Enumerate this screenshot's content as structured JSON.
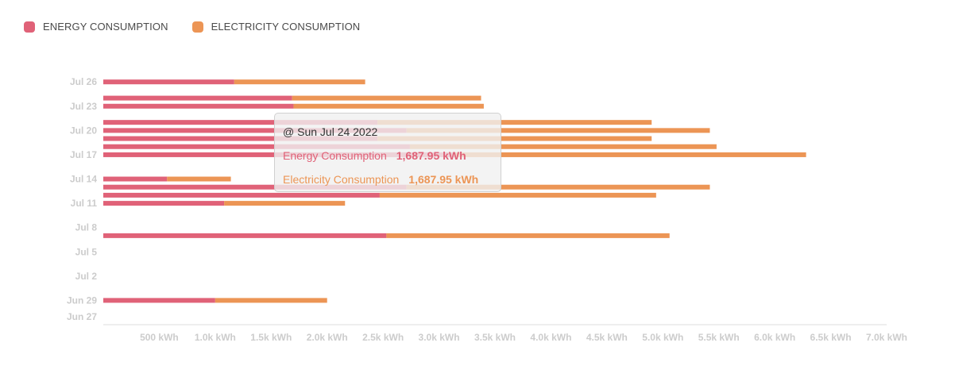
{
  "legend": {
    "energy_label": "ENERGY CONSUMPTION",
    "electricity_label": "ELECTRICITY CONSUMPTION"
  },
  "colors": {
    "energy": "#e06278",
    "electricity": "#ec9555",
    "axis": "#dddddd",
    "tick_text": "#cccccc"
  },
  "tooltip": {
    "title": "@ Sun Jul 24 2022",
    "energy_label": "Energy Consumption",
    "energy_value": "1,687.95 kWh",
    "electricity_label": "Electricity Consumption",
    "electricity_value": "1,687.95 kWh"
  },
  "chart_data": {
    "type": "bar",
    "orientation": "horizontal",
    "stacked": true,
    "xlim": [
      0,
      7000
    ],
    "x_ticks": [
      500,
      1000,
      1500,
      2000,
      2500,
      3000,
      3500,
      4000,
      4500,
      5000,
      5500,
      6000,
      6500,
      7000
    ],
    "x_tick_labels": [
      "500 kWh",
      "1.0k kWh",
      "1.5k kWh",
      "2.0k kWh",
      "2.5k kWh",
      "3.0k kWh",
      "3.5k kWh",
      "4.0k kWh",
      "4.5k kWh",
      "5.0k kWh",
      "5.5k kWh",
      "6.0k kWh",
      "6.5k kWh",
      "7.0k kWh"
    ],
    "y_tick_labels": [
      {
        "label": "Jun 27",
        "date": "2022-06-27"
      },
      {
        "label": "Jun 29",
        "date": "2022-06-29"
      },
      {
        "label": "Jul 2",
        "date": "2022-07-02"
      },
      {
        "label": "Jul 5",
        "date": "2022-07-05"
      },
      {
        "label": "Jul 8",
        "date": "2022-07-08"
      },
      {
        "label": "Jul 11",
        "date": "2022-07-11"
      },
      {
        "label": "Jul 14",
        "date": "2022-07-14"
      },
      {
        "label": "Jul 17",
        "date": "2022-07-17"
      },
      {
        "label": "Jul 20",
        "date": "2022-07-20"
      },
      {
        "label": "Jul 23",
        "date": "2022-07-23"
      },
      {
        "label": "Jul 26",
        "date": "2022-07-26"
      }
    ],
    "ylim": [
      "2022-06-26",
      "2022-07-27"
    ],
    "legend_position": "top-left",
    "grid": false,
    "series": [
      {
        "name": "Energy Consumption",
        "color": "#e06278"
      },
      {
        "name": "Electricity Consumption",
        "color": "#ec9555"
      }
    ],
    "points": [
      {
        "date": "2022-06-29",
        "energy": 1000,
        "electricity": 1000
      },
      {
        "date": "2022-07-07",
        "energy": 2530,
        "electricity": 2530
      },
      {
        "date": "2022-07-11",
        "energy": 1080,
        "electricity": 1080
      },
      {
        "date": "2022-07-12",
        "energy": 2470,
        "electricity": 2470
      },
      {
        "date": "2022-07-13",
        "energy": 2710,
        "electricity": 2710
      },
      {
        "date": "2022-07-14",
        "energy": 570,
        "electricity": 570
      },
      {
        "date": "2022-07-17",
        "energy": 3140,
        "electricity": 3140
      },
      {
        "date": "2022-07-18",
        "energy": 2740,
        "electricity": 2740
      },
      {
        "date": "2022-07-19",
        "energy": 2450,
        "electricity": 2450
      },
      {
        "date": "2022-07-20",
        "energy": 2710,
        "electricity": 2710
      },
      {
        "date": "2022-07-21",
        "energy": 2450,
        "electricity": 2450
      },
      {
        "date": "2022-07-23",
        "energy": 1700,
        "electricity": 1700
      },
      {
        "date": "2022-07-24",
        "energy": 1687.95,
        "electricity": 1687.95
      },
      {
        "date": "2022-07-26",
        "energy": 1170,
        "electricity": 1170
      }
    ]
  }
}
